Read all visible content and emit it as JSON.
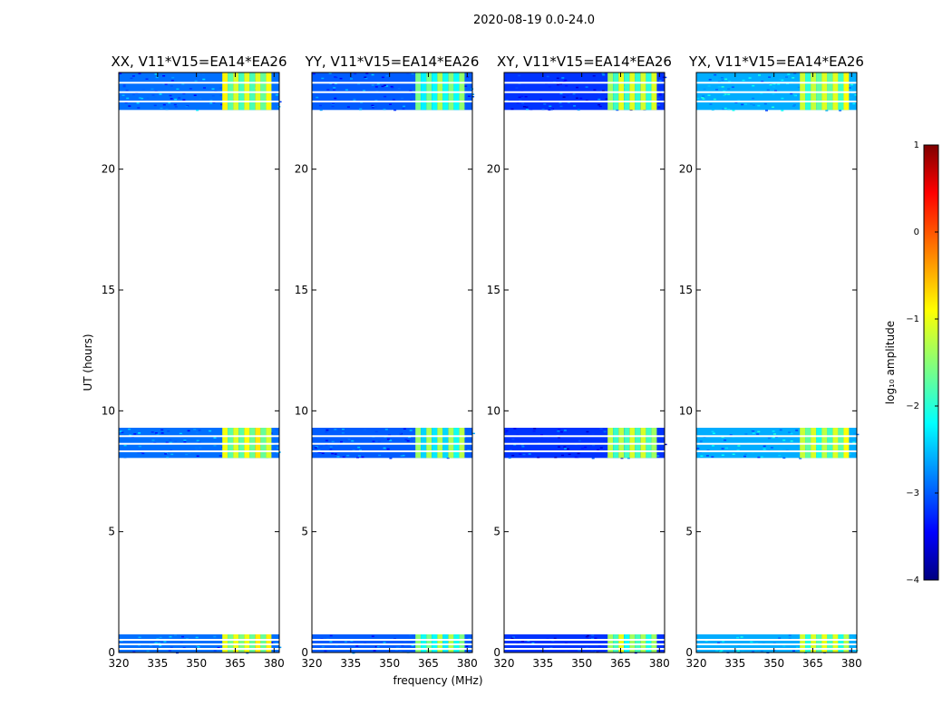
{
  "chart_data": {
    "type": "heatmap",
    "title": "2020-08-19 0.0-24.0",
    "xlabel": "frequency (MHz)",
    "ylabel": "UT (hours)",
    "xlim": [
      320,
      382
    ],
    "ylim": [
      0,
      24
    ],
    "xticks": [
      "320",
      "335",
      "350",
      "365",
      "380"
    ],
    "xtick_values": [
      320,
      335,
      350,
      365,
      380
    ],
    "yticks": [
      "0",
      "5",
      "10",
      "15",
      "20"
    ],
    "ytick_values": [
      0,
      5,
      10,
      15,
      20
    ],
    "colorbar": {
      "label": "log₁₀ amplitude",
      "ticks": [
        "1",
        "0",
        "−1",
        "−2",
        "−3",
        "−4"
      ],
      "tick_values": [
        1,
        0,
        -1,
        -2,
        -3,
        -4
      ],
      "range": [
        -4,
        1
      ],
      "colors": [
        "#00007f",
        "#0000ff",
        "#007fff",
        "#00ffff",
        "#7fff7f",
        "#ffff00",
        "#ff7f00",
        "#ff0000",
        "#7f0000"
      ]
    },
    "observation_blocks_hours": [
      [
        0.0,
        0.75
      ],
      [
        8.05,
        9.3
      ],
      [
        22.45,
        24.0
      ]
    ],
    "bright_band_mhz": [
      360,
      379
    ],
    "panels": [
      {
        "title": "XX, V11*V15=EA14*EA26",
        "background_level": -2.9,
        "band_level": -1.2
      },
      {
        "title": "YY, V11*V15=EA14*EA26",
        "background_level": -3.0,
        "band_level": -1.7
      },
      {
        "title": "XY, V11*V15=EA14*EA26",
        "background_level": -3.2,
        "band_level": -1.5
      },
      {
        "title": "YX, V11*V15=EA14*EA26",
        "background_level": -2.6,
        "band_level": -1.4
      }
    ]
  }
}
